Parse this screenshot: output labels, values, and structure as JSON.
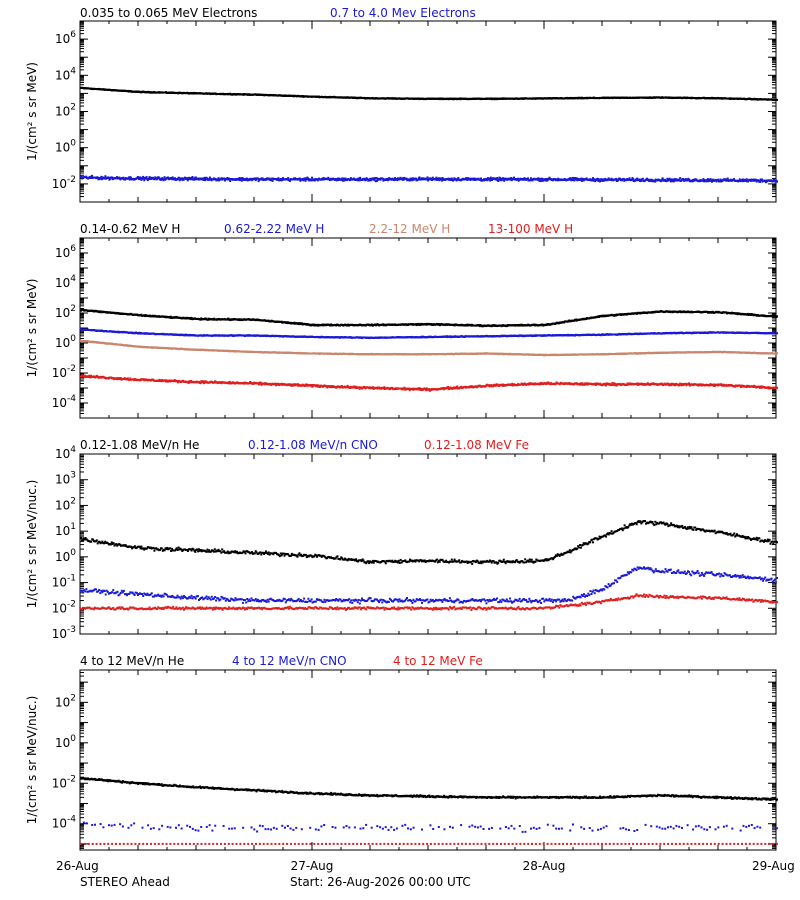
{
  "footer": {
    "spacecraft": "STEREO Ahead",
    "start": "Start: 26-Aug-2026 00:00 UTC"
  },
  "x_ticks": [
    "26-Aug",
    "27-Aug",
    "28-Aug",
    "29-Aug"
  ],
  "colors": {
    "black": "#000000",
    "blue": "#1a1ad6",
    "tan": "#c9866c",
    "red": "#e01e1e"
  },
  "chart_data": [
    {
      "type": "scatter",
      "ylabel": "1/(cm² s sr MeV)",
      "ylog": true,
      "ylim_exp": [
        -3,
        7
      ],
      "yticks": [
        {
          "e": -2,
          "l": "10",
          "s": "-2"
        },
        {
          "e": 0,
          "l": "10",
          "s": "0"
        },
        {
          "e": 2,
          "l": "10",
          "s": "2"
        },
        {
          "e": 4,
          "l": "10",
          "s": "4"
        },
        {
          "e": 6,
          "l": "10",
          "s": "6"
        }
      ],
      "x": [
        0,
        0.25,
        0.5,
        0.75,
        1.0,
        1.25,
        1.5,
        1.75,
        2.0,
        2.25,
        2.5,
        2.75,
        3.0
      ],
      "series": [
        {
          "name": "0.035 to 0.065 MeV Electrons",
          "color": "black",
          "logy": [
            3.3,
            3.08,
            3.0,
            2.93,
            2.82,
            2.73,
            2.7,
            2.7,
            2.72,
            2.75,
            2.77,
            2.73,
            2.65
          ],
          "jitter": 0.03,
          "density": 1200
        },
        {
          "name": "0.7 to 4.0 Mev Electrons",
          "color": "blue",
          "logy": [
            -1.65,
            -1.7,
            -1.72,
            -1.75,
            -1.75,
            -1.75,
            -1.73,
            -1.75,
            -1.75,
            -1.77,
            -1.78,
            -1.8,
            -1.82
          ],
          "jitter": 0.12,
          "density": 1200
        }
      ]
    },
    {
      "type": "scatter",
      "ylabel": "1/(cm² s sr MeV)",
      "ylog": true,
      "ylim_exp": [
        -5,
        7
      ],
      "yticks": [
        {
          "e": -4,
          "l": "10",
          "s": "-4"
        },
        {
          "e": -2,
          "l": "10",
          "s": "-2"
        },
        {
          "e": 0,
          "l": "10",
          "s": "0"
        },
        {
          "e": 2,
          "l": "10",
          "s": "2"
        },
        {
          "e": 4,
          "l": "10",
          "s": "4"
        },
        {
          "e": 6,
          "l": "10",
          "s": "6"
        }
      ],
      "x": [
        0,
        0.25,
        0.5,
        0.75,
        1.0,
        1.25,
        1.5,
        1.75,
        2.0,
        2.25,
        2.5,
        2.75,
        3.0
      ],
      "series": [
        {
          "name": "0.14-0.62 MeV H",
          "color": "black",
          "logy": [
            2.2,
            1.85,
            1.6,
            1.55,
            1.2,
            1.2,
            1.25,
            1.15,
            1.2,
            1.8,
            2.1,
            2.05,
            1.75
          ],
          "jitter": 0.06,
          "density": 1100
        },
        {
          "name": "0.62-2.22 MeV H",
          "color": "blue",
          "logy": [
            0.9,
            0.65,
            0.5,
            0.5,
            0.4,
            0.35,
            0.4,
            0.45,
            0.5,
            0.55,
            0.65,
            0.7,
            0.65
          ],
          "jitter": 0.04,
          "density": 1100
        },
        {
          "name": "2.2-12 MeV H",
          "color": "tan",
          "logy": [
            0.15,
            -0.25,
            -0.45,
            -0.6,
            -0.7,
            -0.75,
            -0.75,
            -0.7,
            -0.8,
            -0.75,
            -0.65,
            -0.6,
            -0.7
          ],
          "jitter": 0.03,
          "density": 1100
        },
        {
          "name": "13-100 MeV H",
          "color": "red",
          "logy": [
            -2.2,
            -2.45,
            -2.6,
            -2.7,
            -2.85,
            -3.0,
            -3.1,
            -2.85,
            -2.7,
            -2.75,
            -2.75,
            -2.8,
            -3.0
          ],
          "jitter": 0.1,
          "density": 1100
        }
      ]
    },
    {
      "type": "scatter",
      "ylabel": "1/(cm² s sr MeV/nuc.)",
      "ylog": true,
      "ylim_exp": [
        -3,
        4
      ],
      "yticks": [
        {
          "e": -3,
          "l": "10",
          "s": "-3"
        },
        {
          "e": -2,
          "l": "10",
          "s": "-2"
        },
        {
          "e": -1,
          "l": "10",
          "s": "-1"
        },
        {
          "e": 0,
          "l": "10",
          "s": "0"
        },
        {
          "e": 1,
          "l": "10",
          "s": "1"
        },
        {
          "e": 2,
          "l": "10",
          "s": "2"
        },
        {
          "e": 3,
          "l": "10",
          "s": "3"
        },
        {
          "e": 4,
          "l": "10",
          "s": "4"
        }
      ],
      "x": [
        0,
        0.25,
        0.5,
        0.75,
        1.0,
        1.25,
        1.5,
        1.75,
        2.0,
        2.1,
        2.25,
        2.4,
        2.5,
        2.75,
        3.0
      ],
      "series": [
        {
          "name": "0.12-1.08 MeV/n He",
          "color": "black",
          "logy": [
            0.7,
            0.35,
            0.25,
            0.15,
            0.05,
            -0.2,
            -0.15,
            -0.2,
            -0.15,
            0.2,
            0.8,
            1.35,
            1.3,
            0.95,
            0.55
          ],
          "jitter": 0.1,
          "density": 750
        },
        {
          "name": "0.12-1.08 MeV/n CNO",
          "color": "blue",
          "logy": [
            -1.3,
            -1.45,
            -1.6,
            -1.7,
            -1.7,
            -1.7,
            -1.7,
            -1.7,
            -1.7,
            -1.7,
            -1.25,
            -0.4,
            -0.55,
            -0.7,
            -0.9
          ],
          "jitter": 0.12,
          "density": 650
        },
        {
          "name": "0.12-1.08 MeV Fe",
          "color": "red",
          "logy": [
            -2.0,
            -2.0,
            -2.0,
            -2.0,
            -2.0,
            -2.0,
            -2.0,
            -2.0,
            -2.0,
            -1.9,
            -1.75,
            -1.5,
            -1.55,
            -1.6,
            -1.75
          ],
          "jitter": 0.08,
          "density": 650
        }
      ]
    },
    {
      "type": "scatter",
      "ylabel": "1/(cm² s sr MeV/nuc.)",
      "ylog": true,
      "ylim_exp": [
        -5.3,
        3.6
      ],
      "yticks": [
        {
          "e": -4,
          "l": "10",
          "s": "-4"
        },
        {
          "e": -2,
          "l": "10",
          "s": "-2"
        },
        {
          "e": 0,
          "l": "10",
          "s": "0"
        },
        {
          "e": 2,
          "l": "10",
          "s": "2"
        }
      ],
      "x": [
        0,
        0.25,
        0.5,
        0.75,
        1.0,
        1.25,
        1.5,
        1.75,
        2.0,
        2.25,
        2.5,
        2.75,
        3.0
      ],
      "series": [
        {
          "name": "4 to 12 MeV/n He",
          "color": "black",
          "logy": [
            -1.75,
            -2.0,
            -2.2,
            -2.35,
            -2.5,
            -2.6,
            -2.65,
            -2.7,
            -2.7,
            -2.7,
            -2.6,
            -2.7,
            -2.8
          ],
          "jitter": 0.06,
          "density": 1000
        },
        {
          "name": "4 to 12 MeV/n CNO",
          "color": "blue",
          "logy": [
            -4.0,
            -4.15,
            -4.2,
            -4.2,
            -4.2,
            -4.2,
            -4.2,
            -4.2,
            -4.2,
            -4.2,
            -4.2,
            -4.2,
            -4.2
          ],
          "jitter": 0.25,
          "density": 250
        },
        {
          "name": "4 to 12 MeV Fe",
          "color": "red",
          "logy": [
            -5.0,
            -5.0,
            -5.0,
            -5.0,
            -5.0,
            -5.0,
            -5.0,
            -5.0,
            -5.0,
            -5.0,
            -5.0,
            -5.0,
            -5.0
          ],
          "jitter": 0.0,
          "density": 180
        }
      ]
    }
  ]
}
